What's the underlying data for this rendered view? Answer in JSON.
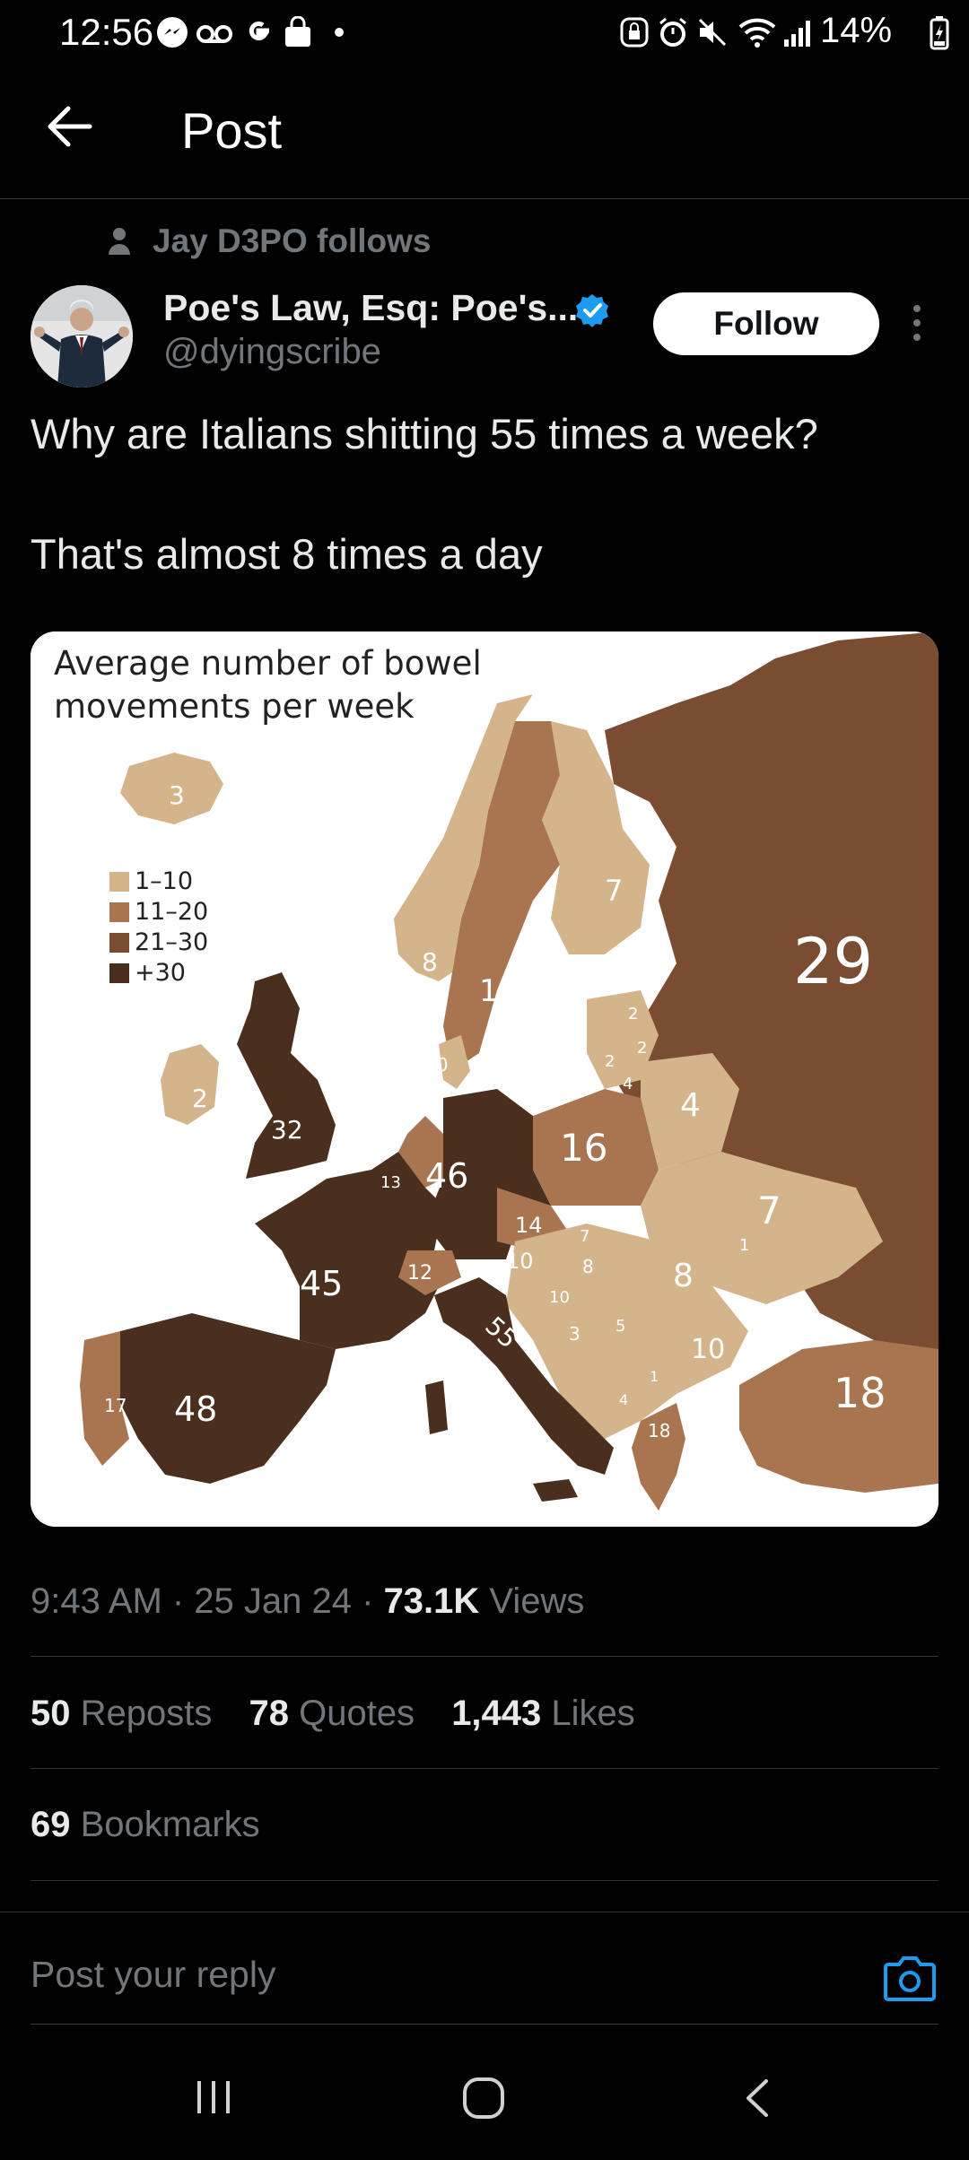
{
  "status_bar": {
    "time": "12:56",
    "battery": "14%",
    "icons": [
      "messenger-icon",
      "voicemail-icon",
      "google-icon",
      "shopping-bag-icon",
      "dot-icon",
      "lock-icon",
      "alarm-icon",
      "mute-icon",
      "wifi-icon",
      "signal-icon",
      "battery-charging-icon"
    ]
  },
  "header": {
    "title": "Post"
  },
  "post": {
    "social_context": "Jay D3PO follows",
    "author_name": "Poe's Law, Esq: Poe's...",
    "author_handle": "@dyingscribe",
    "follow_label": "Follow",
    "text_line1": "Why are Italians shitting 55 times a week?",
    "text_line2": "That's almost 8 times a day",
    "timestamp": "9:43 AM · 25 Jan 24 · ",
    "views_count": "73.1K",
    "views_label": " Views",
    "reposts_count": "50",
    "reposts_label": " Reposts",
    "quotes_count": "78",
    "quotes_label": " Quotes",
    "likes_count": "1,443",
    "likes_label": " Likes",
    "bookmarks_count": "69",
    "bookmarks_label": " Bookmarks"
  },
  "map": {
    "title_line1": "Average number of bowel",
    "title_line2": "movements per week",
    "legend": [
      {
        "label": "1–10",
        "color": "#d4b48b"
      },
      {
        "label": "11–20",
        "color": "#a87550"
      },
      {
        "label": "21–30",
        "color": "#7a4d33"
      },
      {
        "label": "+30",
        "color": "#4a2e1e"
      }
    ],
    "values": {
      "iceland": "3",
      "ireland": "2",
      "uk": "32",
      "norway": "8",
      "sweden": "15",
      "finland": "7",
      "russia": "29",
      "denmark": "10",
      "netherlands": "10",
      "belgium": "13",
      "france": "45",
      "germany": "46",
      "poland": "16",
      "belarus": "4",
      "ukraine": "7",
      "czech": "14",
      "switzerland": "12",
      "austria": "10",
      "hungary": "8",
      "romania": "8",
      "bulgaria": "10",
      "turkey": "18",
      "italy": "55",
      "spain": "48",
      "portugal": "17",
      "greece": "18",
      "latvia": "2",
      "lithuania": "2",
      "estonia": "2",
      "kaliningrad": "4",
      "slovakia": "7",
      "serbia": "5",
      "croatia": "3",
      "slovenia": "10",
      "moldova": "1",
      "albania": "1",
      "macedonia": "4"
    }
  },
  "reply": {
    "placeholder": "Post your reply"
  }
}
